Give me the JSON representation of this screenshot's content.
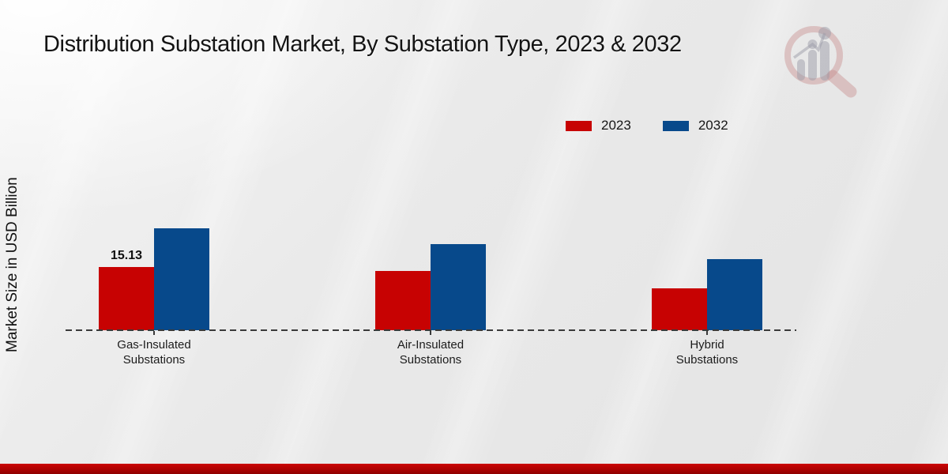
{
  "chart_data": {
    "type": "bar",
    "title": "Distribution Substation Market, By Substation Type, 2023 & 2032",
    "ylabel": "Market Size in USD Billion",
    "unit": "USD Billion",
    "categories": [
      {
        "line1": "Gas-Insulated",
        "line2": "Substations"
      },
      {
        "line1": "Air-Insulated",
        "line2": "Substations"
      },
      {
        "line1": "Hybrid",
        "line2": "Substations"
      }
    ],
    "series": [
      {
        "name": "2023",
        "color": "#c70202",
        "values": [
          15.13,
          14.2,
          10.0
        ],
        "value_labels": [
          "15.13",
          "",
          ""
        ]
      },
      {
        "name": "2032",
        "color": "#07498b",
        "values": [
          24.4,
          20.6,
          17.0
        ],
        "value_labels": [
          "",
          "",
          ""
        ]
      }
    ],
    "baseline_value": 0,
    "grid": false,
    "y_axis_ticks_shown": false,
    "x_axis_line_style": "dashed",
    "legend_position": "upper-right",
    "shown_value_labels": [
      "15.13"
    ]
  },
  "branding": {
    "logo_name": "magnifier-bar-chart-watermark",
    "logo_ring_color": "#d8b9b9",
    "logo_bars_color": "#bfbfc6",
    "footer_bar_color": "#b40202"
  }
}
